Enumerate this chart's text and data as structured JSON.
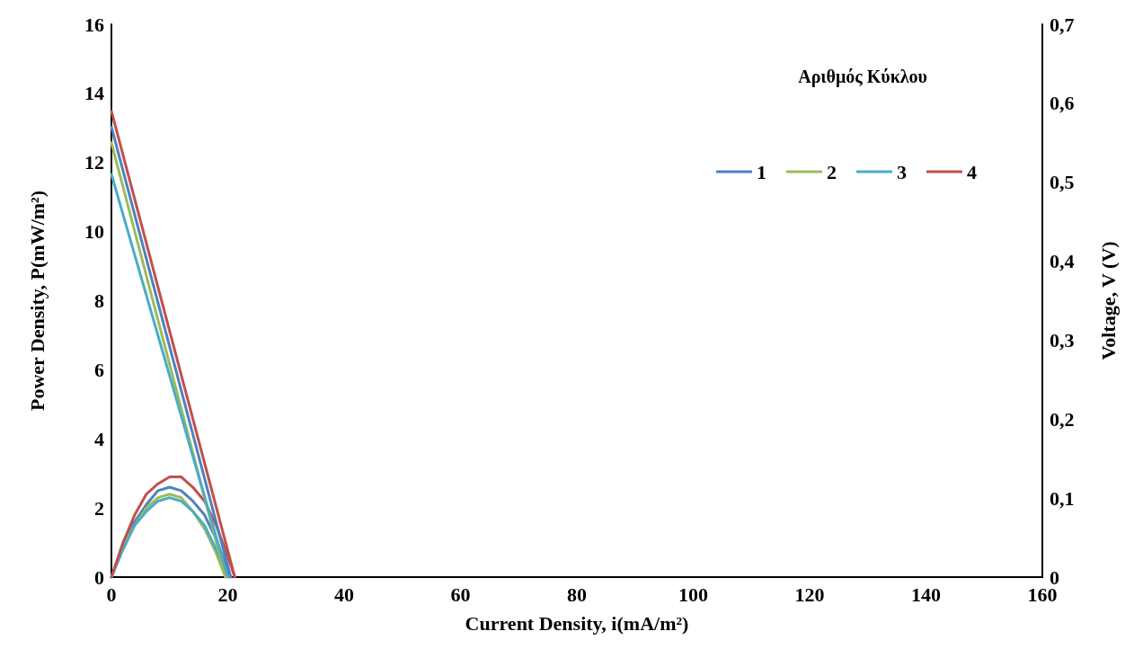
{
  "chart_data": {
    "type": "line",
    "xlabel": "Current Density, i(mA/m²)",
    "ylabel": "Power Density, P(mW/m²)",
    "y2label": "Voltage, V (V)",
    "legend_title": "Αριθμός Κύκλου",
    "legend": "top right",
    "grid": false,
    "xlim": [
      0,
      160
    ],
    "xticks": [
      0,
      20,
      40,
      60,
      80,
      100,
      120,
      140,
      160
    ],
    "ylim": [
      0,
      16
    ],
    "yticks": [
      0,
      2,
      4,
      6,
      8,
      10,
      12,
      14,
      16
    ],
    "y2lim": [
      0,
      0.7
    ],
    "y2ticks": [
      0,
      {
        "value": 0.1,
        "label": "0,1"
      },
      {
        "value": 0.2,
        "label": "0,2"
      },
      {
        "value": 0.3,
        "label": "0,3"
      },
      {
        "value": 0.4,
        "label": "0,4"
      },
      {
        "value": 0.5,
        "label": "0,5"
      },
      {
        "value": 0.6,
        "label": "0,6"
      },
      {
        "value": 0.7,
        "label": "0,7"
      }
    ],
    "series": [
      {
        "name": "1",
        "color": "#4f81bd",
        "x": [
          0,
          2,
          4,
          6,
          8,
          10,
          12,
          14,
          16,
          18,
          20,
          20.5
        ],
        "values": [
          0,
          0.9,
          1.6,
          2.1,
          2.5,
          2.6,
          2.5,
          2.2,
          1.8,
          1.1,
          0.2,
          0
        ]
      },
      {
        "name": "2",
        "color": "#9bbb59",
        "x": [
          0,
          2,
          4,
          6,
          8,
          10,
          12,
          14,
          16,
          18,
          19.6
        ],
        "values": [
          0,
          0.9,
          1.5,
          2.0,
          2.3,
          2.4,
          2.3,
          1.9,
          1.4,
          0.7,
          0
        ]
      },
      {
        "name": "3",
        "color": "#4bacc6",
        "x": [
          0,
          2,
          4,
          6,
          8,
          10,
          12,
          14,
          16,
          18,
          20
        ],
        "values": [
          0,
          0.8,
          1.5,
          1.9,
          2.2,
          2.3,
          2.2,
          1.9,
          1.5,
          0.8,
          0
        ]
      },
      {
        "name": "4",
        "color": "#c0504d",
        "x": [
          0,
          2,
          4,
          6,
          8,
          10,
          12,
          14,
          16,
          18,
          20,
          21.2
        ],
        "values": [
          0,
          1.0,
          1.8,
          2.4,
          2.7,
          2.9,
          2.9,
          2.6,
          2.2,
          1.5,
          0.6,
          0
        ]
      },
      {
        "color": "#4f81bd",
        "axis": "y2",
        "x": [
          0,
          20.5
        ],
        "values": [
          0.57,
          0
        ]
      },
      {
        "color": "#9bbb59",
        "axis": "y2",
        "x": [
          0,
          19.6
        ],
        "values": [
          0.55,
          0
        ]
      },
      {
        "color": "#4bacc6",
        "axis": "y2",
        "x": [
          0,
          20
        ],
        "values": [
          0.51,
          0
        ]
      },
      {
        "color": "#c0504d",
        "axis": "y2",
        "x": [
          0,
          21.2
        ],
        "values": [
          0.59,
          0
        ]
      }
    ]
  }
}
